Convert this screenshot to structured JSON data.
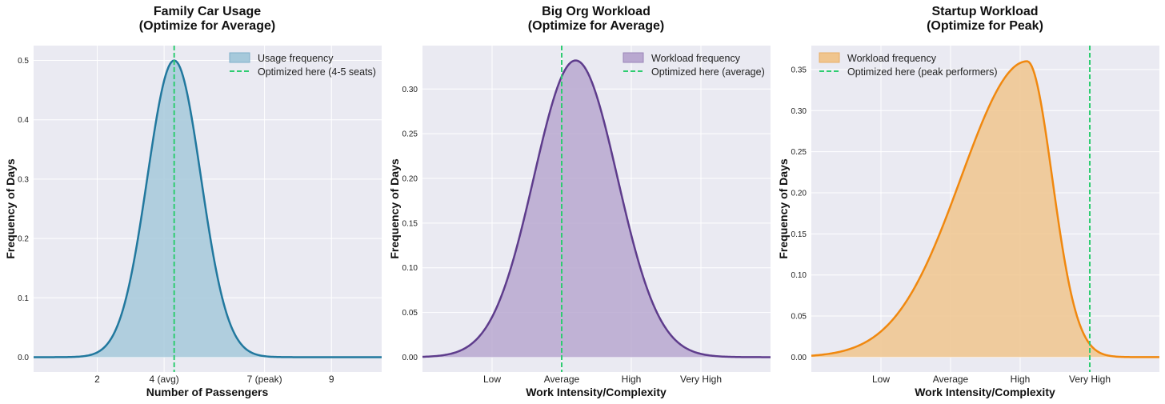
{
  "chart_data": [
    {
      "type": "area",
      "title_lines": [
        "Family Car Usage",
        "(Optimize for Average)"
      ],
      "xlabel": "Number of Passengers",
      "ylabel": "Frequency of Days",
      "xlim": [
        0.1,
        10.5
      ],
      "ylim": [
        -0.025,
        0.525
      ],
      "yticks": [
        0.0,
        0.1,
        0.2,
        0.3,
        0.4,
        0.5
      ],
      "ytick_labels": [
        "0.0",
        "0.1",
        "0.2",
        "0.3",
        "0.4",
        "0.5"
      ],
      "xticks": [
        2,
        4,
        7,
        9
      ],
      "xtick_labels": [
        "2",
        "4 (avg)",
        "7 (peak)",
        "9"
      ],
      "curve": {
        "shape": "normal",
        "mean": 4.3,
        "sd": 0.8,
        "peak": 0.5
      },
      "vline_x": 4.3,
      "line_color": "#21789e",
      "fill_color": "#a6c9db",
      "vline_color": "#2ecc71",
      "legend": [
        "Usage frequency",
        "Optimized here (4-5 seats)"
      ],
      "legend_position": "top-right"
    },
    {
      "type": "area",
      "title_lines": [
        "Big Org Workload",
        "(Optimize for Average)"
      ],
      "xlabel": "Work Intensity/Complexity",
      "ylabel": "Frequency of Days",
      "xlim": [
        0,
        10
      ],
      "ylim": [
        -0.0166,
        0.3486
      ],
      "yticks": [
        0.0,
        0.05,
        0.1,
        0.15,
        0.2,
        0.25,
        0.3
      ],
      "ytick_labels": [
        "0.00",
        "0.05",
        "0.10",
        "0.15",
        "0.20",
        "0.25",
        "0.30"
      ],
      "xticks": [
        2,
        4,
        6,
        8
      ],
      "xtick_labels": [
        "Low",
        "Average",
        "High",
        "Very High"
      ],
      "curve": {
        "shape": "normal",
        "mean": 4.4,
        "sd": 1.2,
        "peak": 0.332
      },
      "vline_x": 4.0,
      "line_color": "#5e3c8c",
      "fill_color": "#b9a8d0",
      "vline_color": "#2ecc71",
      "legend": [
        "Workload frequency",
        "Optimized here (average)"
      ],
      "legend_position": "top-right"
    },
    {
      "type": "area",
      "title_lines": [
        "Startup Workload",
        "(Optimize for Peak)"
      ],
      "xlabel": "Work Intensity/Complexity",
      "ylabel": "Frequency of Days",
      "xlim": [
        0,
        10
      ],
      "ylim": [
        -0.0181,
        0.3791
      ],
      "yticks": [
        0.0,
        0.05,
        0.1,
        0.15,
        0.2,
        0.25,
        0.3,
        0.35
      ],
      "ytick_labels": [
        "0.00",
        "0.05",
        "0.10",
        "0.15",
        "0.20",
        "0.25",
        "0.30",
        "0.35"
      ],
      "xticks": [
        2,
        4,
        6,
        8
      ],
      "xtick_labels": [
        "Low",
        "Average",
        "High",
        "Very High"
      ],
      "curve": {
        "shape": "left-skewed",
        "mode": 6.2,
        "sd_left": 1.9,
        "sd_right": 0.72,
        "peak": 0.36
      },
      "vline_x": 8.0,
      "line_color": "#f0880f",
      "fill_color": "#f0c58e",
      "vline_color": "#2ecc71",
      "legend": [
        "Workload frequency",
        "Optimized here (peak performers)"
      ],
      "legend_position": "top-left"
    }
  ]
}
